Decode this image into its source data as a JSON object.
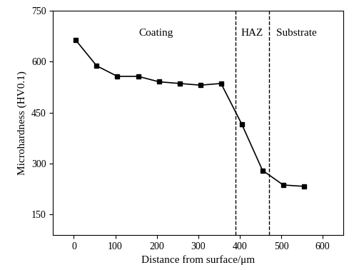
{
  "chart_data": {
    "type": "line",
    "x_label": "Distance from surface/μm",
    "y_label": "Microhardness (HV0.1)",
    "x": [
      5,
      55,
      105,
      155,
      205,
      255,
      305,
      355,
      405,
      455,
      505,
      555
    ],
    "values": [
      663,
      588,
      557,
      557,
      541,
      536,
      531,
      536,
      416,
      280,
      237,
      233
    ],
    "color": "#000000",
    "marker": "square",
    "line_style": "solid",
    "xlim": [
      -50,
      650
    ],
    "xticks": [
      0,
      100,
      200,
      300,
      400,
      500,
      600
    ],
    "ylim": [
      90,
      750
    ],
    "yticks": [
      150,
      300,
      450,
      600,
      750
    ],
    "grid": false,
    "boundaries": [
      390,
      470
    ],
    "regions": [
      "Coating",
      "HAZ",
      "Substrate"
    ]
  }
}
